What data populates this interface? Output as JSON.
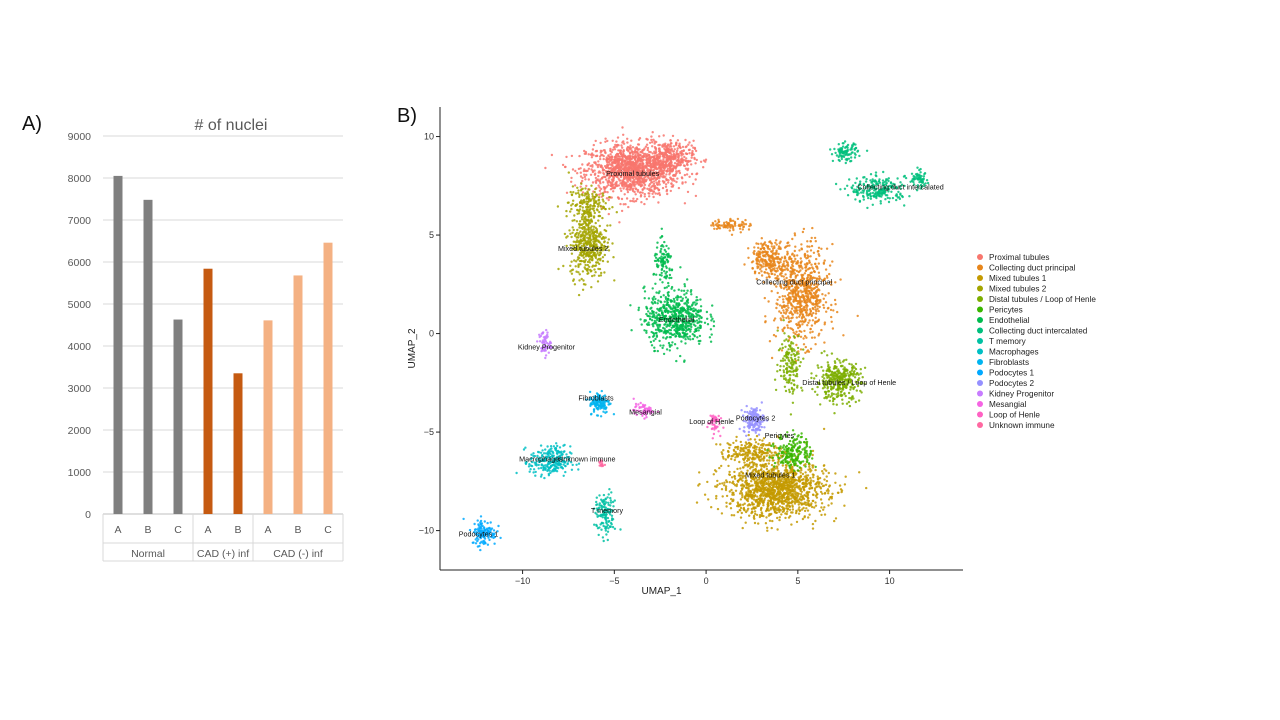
{
  "panels": {
    "a_label": "A)",
    "b_label": "B)"
  },
  "colors": {
    "normal": "#7f7f7f",
    "cad_pos": "#c55a11",
    "cad_neg": "#f4b183"
  },
  "chart_data": [
    {
      "type": "bar",
      "title": "# of nuclei",
      "categories": [
        "A",
        "B",
        "C",
        "A",
        "B",
        "A",
        "B",
        "C"
      ],
      "groups": [
        {
          "name": "Normal",
          "count": 3
        },
        {
          "name": "CAD (+) inf",
          "count": 2
        },
        {
          "name": "CAD (-) inf",
          "count": 3
        }
      ],
      "values": [
        8050,
        7480,
        4630,
        5840,
        3350,
        4610,
        5680,
        6460
      ],
      "ylim": [
        0,
        9000
      ],
      "yticks": [
        0,
        1000,
        2000,
        3000,
        4000,
        5000,
        6000,
        7000,
        8000,
        9000
      ],
      "grid": true
    },
    {
      "type": "scatter",
      "xlabel": "UMAP_1",
      "ylabel": "UMAP_2",
      "xlim": [
        -14.5,
        14
      ],
      "ylim": [
        -12,
        11.5
      ],
      "xticks": [
        -10,
        -5,
        0,
        5,
        10
      ],
      "yticks": [
        -10,
        -5,
        0,
        5,
        10
      ],
      "legend_position": "right",
      "clusters": [
        {
          "name": "Proximal tubules",
          "color": "#f8766d",
          "label": "Proximal tubules",
          "label_at": [
            -4,
            8
          ]
        },
        {
          "name": "Collecting duct principal",
          "color": "#e7861b",
          "label": "Collecting duct principal",
          "label_at": [
            4.8,
            2.5
          ]
        },
        {
          "name": "Mixed tubules 1",
          "color": "#c49a00",
          "label": "Mixed tubules 1",
          "label_at": [
            3.5,
            -7.3
          ]
        },
        {
          "name": "Mixed tubules 2",
          "color": "#a3a500",
          "label": "Mixed tubules 2",
          "label_at": [
            -6.7,
            4.2
          ]
        },
        {
          "name": "Distal tubules / Loop of Henle",
          "color": "#7cae00",
          "label": "Distal tubules / Loop of Henle",
          "label_at": [
            7.8,
            -2.6
          ]
        },
        {
          "name": "Pericytes",
          "color": "#39b600",
          "label": "Pericytes",
          "label_at": [
            4,
            -5.3
          ]
        },
        {
          "name": "Endothelial",
          "color": "#00bb4e",
          "label": "Endothelial",
          "label_at": [
            -1.6,
            0.6
          ]
        },
        {
          "name": "Collecting duct intercalated",
          "color": "#00bf7d",
          "label": "Collecting duct intercalated",
          "label_at": [
            10.6,
            7.3
          ]
        },
        {
          "name": "T memory",
          "color": "#00c1a3",
          "label": "T memory",
          "label_at": [
            -5.4,
            -9.1
          ]
        },
        {
          "name": "Macrophages",
          "color": "#00bfc4",
          "label": "Macrophages",
          "label_at": [
            -9,
            -6.5
          ]
        },
        {
          "name": "Fibroblasts",
          "color": "#00b4f0",
          "label": "Fibroblasts",
          "label_at": [
            -6,
            -3.4
          ]
        },
        {
          "name": "Podocytes 1",
          "color": "#00a9ff",
          "label": "Podocytes 1",
          "label_at": [
            -12.4,
            -10.3
          ]
        },
        {
          "name": "Podocytes 2",
          "color": "#9590ff",
          "label": "Podocytes 2",
          "label_at": [
            2.7,
            -4.4
          ]
        },
        {
          "name": "Kidney Progenitor",
          "color": "#c77cff",
          "label": "Kidney Progenitor",
          "label_at": [
            -8.7,
            -0.8
          ]
        },
        {
          "name": "Mesangial",
          "color": "#f564e3",
          "label": "Mesangial",
          "label_at": [
            -3.3,
            -4.1
          ]
        },
        {
          "name": "Loop of Henle",
          "color": "#ff61c3",
          "label": "Loop of Henle",
          "label_at": [
            0.3,
            -4.6
          ]
        },
        {
          "name": "Unknown immune",
          "color": "#ff68a1",
          "label": "Unknown immune",
          "label_at": [
            -6.5,
            -6.5
          ]
        }
      ]
    }
  ]
}
